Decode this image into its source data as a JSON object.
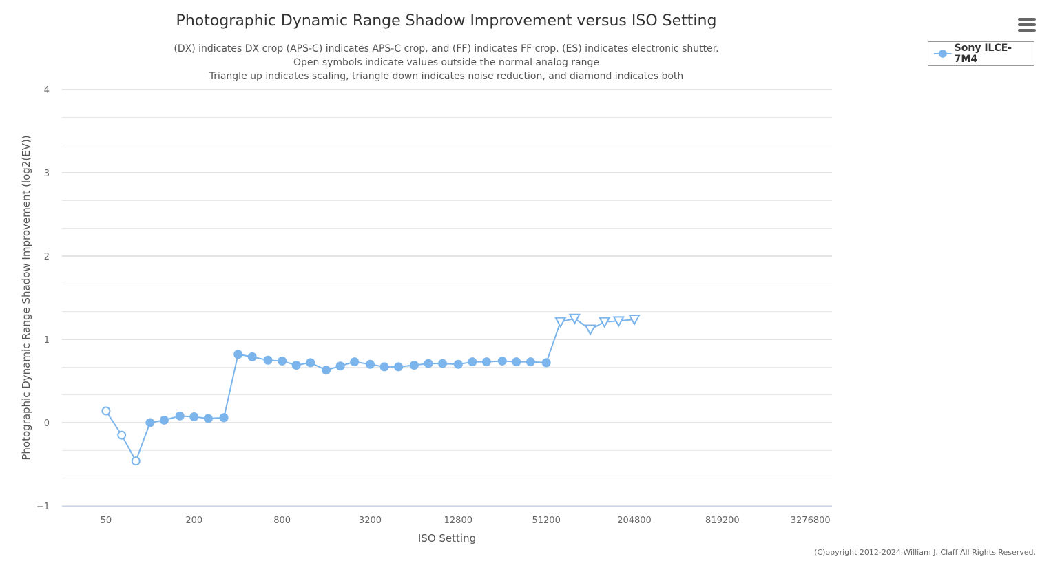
{
  "header": {
    "title": "Photographic Dynamic Range Shadow Improvement versus ISO Setting",
    "subtitle_lines": [
      "(DX) indicates DX crop (APS-C) indicates APS-C crop, and (FF) indicates FF crop. (ES) indicates electronic shutter.",
      "Open symbols indicate values outside the normal analog range",
      "Triangle up indicates scaling, triangle down indicates noise reduction, and diamond indicates both"
    ]
  },
  "menu": {
    "icon": "hamburger-menu-icon"
  },
  "legend": {
    "label": "Sony ILCE-7M4",
    "color": "#7cb5ec"
  },
  "footer": {
    "copyright": "(C)opyright 2012-2024 William J. Claff All Rights Reserved."
  },
  "chart_data": {
    "type": "line",
    "title": "Photographic Dynamic Range Shadow Improvement versus ISO Setting",
    "xlabel": "ISO Setting",
    "ylabel": "Photographic Dynamic Range Shadow Improvement (log2(EV))",
    "x_scale": "log2",
    "x_ticks": [
      50,
      200,
      800,
      3200,
      12800,
      51200,
      204800,
      819200,
      3276800
    ],
    "x_tick_labels": [
      "50",
      "200",
      "800",
      "3200",
      "12800",
      "51200",
      "204800",
      "819200",
      "3276800"
    ],
    "xlim": [
      25,
      4600000
    ],
    "y_ticks": [
      -1,
      0,
      1,
      2,
      3,
      4
    ],
    "y_tick_labels": [
      "−1",
      "0",
      "1",
      "2",
      "3",
      "4"
    ],
    "ylim": [
      -1,
      4
    ],
    "grid": true,
    "legend_position": "top-right",
    "series": [
      {
        "name": "Sony ILCE-7M4",
        "color": "#7cb5ec",
        "points": [
          {
            "x": 50,
            "y": 0.14,
            "marker": "open-circle"
          },
          {
            "x": 64,
            "y": -0.15,
            "marker": "open-circle"
          },
          {
            "x": 80,
            "y": -0.46,
            "marker": "open-circle"
          },
          {
            "x": 100,
            "y": 0.0,
            "marker": "circle"
          },
          {
            "x": 125,
            "y": 0.03,
            "marker": "circle"
          },
          {
            "x": 160,
            "y": 0.08,
            "marker": "circle"
          },
          {
            "x": 200,
            "y": 0.07,
            "marker": "circle"
          },
          {
            "x": 250,
            "y": 0.05,
            "marker": "circle"
          },
          {
            "x": 320,
            "y": 0.06,
            "marker": "circle"
          },
          {
            "x": 400,
            "y": 0.82,
            "marker": "circle"
          },
          {
            "x": 500,
            "y": 0.79,
            "marker": "circle"
          },
          {
            "x": 640,
            "y": 0.75,
            "marker": "circle"
          },
          {
            "x": 800,
            "y": 0.74,
            "marker": "circle"
          },
          {
            "x": 1000,
            "y": 0.69,
            "marker": "circle"
          },
          {
            "x": 1250,
            "y": 0.72,
            "marker": "circle"
          },
          {
            "x": 1600,
            "y": 0.63,
            "marker": "circle"
          },
          {
            "x": 2000,
            "y": 0.68,
            "marker": "circle"
          },
          {
            "x": 2500,
            "y": 0.73,
            "marker": "circle"
          },
          {
            "x": 3200,
            "y": 0.7,
            "marker": "circle"
          },
          {
            "x": 4000,
            "y": 0.67,
            "marker": "circle"
          },
          {
            "x": 5000,
            "y": 0.67,
            "marker": "circle"
          },
          {
            "x": 6400,
            "y": 0.69,
            "marker": "circle"
          },
          {
            "x": 8000,
            "y": 0.71,
            "marker": "circle"
          },
          {
            "x": 10000,
            "y": 0.71,
            "marker": "circle"
          },
          {
            "x": 12800,
            "y": 0.7,
            "marker": "circle"
          },
          {
            "x": 16000,
            "y": 0.73,
            "marker": "circle"
          },
          {
            "x": 20000,
            "y": 0.73,
            "marker": "circle"
          },
          {
            "x": 25600,
            "y": 0.74,
            "marker": "circle"
          },
          {
            "x": 32000,
            "y": 0.73,
            "marker": "circle"
          },
          {
            "x": 40000,
            "y": 0.73,
            "marker": "circle"
          },
          {
            "x": 51200,
            "y": 0.72,
            "marker": "circle"
          },
          {
            "x": 64000,
            "y": 1.21,
            "marker": "open-triangle-down"
          },
          {
            "x": 80000,
            "y": 1.25,
            "marker": "open-triangle-down"
          },
          {
            "x": 102400,
            "y": 1.12,
            "marker": "open-triangle-down"
          },
          {
            "x": 128000,
            "y": 1.21,
            "marker": "open-triangle-down"
          },
          {
            "x": 160000,
            "y": 1.22,
            "marker": "open-triangle-down"
          },
          {
            "x": 204800,
            "y": 1.24,
            "marker": "open-triangle-down"
          }
        ]
      }
    ]
  }
}
